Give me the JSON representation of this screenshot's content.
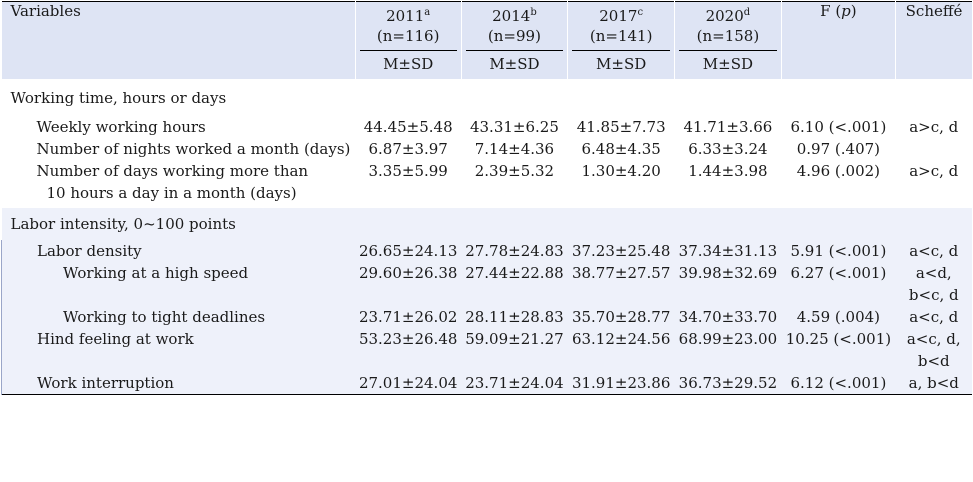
{
  "header": {
    "variables": "Variables",
    "years": [
      {
        "year": "2011",
        "sup": "a",
        "n": "(n=116)"
      },
      {
        "year": "2014",
        "sup": "b",
        "n": "(n=99)"
      },
      {
        "year": "2017",
        "sup": "c",
        "n": "(n=141)"
      },
      {
        "year": "2020",
        "sup": "d",
        "n": "(n=158)"
      }
    ],
    "stat": "M±SD",
    "f_label": "F (",
    "f_p": "p",
    "f_close": ")",
    "scheffe": "Scheffé"
  },
  "sections": [
    {
      "title": "Working time, hours or days",
      "rows": [
        {
          "label": "Weekly working hours",
          "v": [
            "44.45±5.48",
            "43.31±6.25",
            "41.85±7.73",
            "41.71±3.66"
          ],
          "f": "6.10 (<.001)",
          "s": "a>c, d"
        },
        {
          "label": "Number of nights worked a month (days)",
          "v": [
            "6.87±3.97",
            "7.14±4.36",
            "6.48±4.35",
            "6.33±3.24"
          ],
          "f": "0.97 (.407)",
          "s": ""
        },
        {
          "label": "Number of days working more than",
          "label2": "10 hours a day in a month (days)",
          "v": [
            "3.35±5.99",
            "2.39±5.32",
            "1.30±4.20",
            "1.44±3.98"
          ],
          "f": "4.96 (.002)",
          "s": "a>c, d"
        }
      ]
    },
    {
      "title": "Labor intensity, 0~100 points",
      "rows": [
        {
          "label": "Labor density",
          "v": [
            "26.65±24.13",
            "27.78±24.83",
            "37.23±25.48",
            "37.34±31.13"
          ],
          "f": "5.91 (<.001)",
          "s": "a<c, d"
        },
        {
          "label": "Working at a high speed",
          "v": [
            "29.60±26.38",
            "27.44±22.88",
            "38.77±27.57",
            "39.98±32.69"
          ],
          "f": "6.27 (<.001)",
          "s": "a<d,",
          "s2": "b<c, d"
        },
        {
          "label": "Working to tight deadlines",
          "v": [
            "23.71±26.02",
            "28.11±28.83",
            "35.70±28.77",
            "34.70±33.70"
          ],
          "f": "4.59 (.004)",
          "s": "a<c, d"
        },
        {
          "label": "Hind feeling at work",
          "v": [
            "53.23±26.48",
            "59.09±21.27",
            "63.12±24.56",
            "68.99±23.00"
          ],
          "f": "10.25 (<.001)",
          "s": "a<c, d,",
          "s2": "b<d"
        },
        {
          "label": "Work interruption",
          "v": [
            "27.01±24.04",
            "23.71±24.04",
            "31.91±23.86",
            "36.73±29.52"
          ],
          "f": "6.12 (<.001)",
          "s": "a, b<d"
        }
      ]
    }
  ]
}
